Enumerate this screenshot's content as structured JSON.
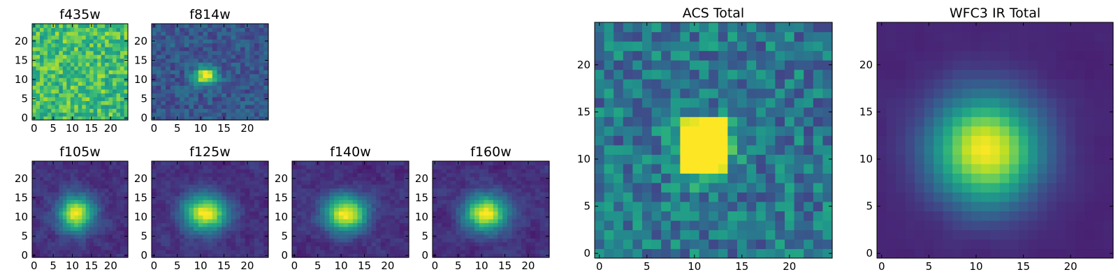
{
  "chart_data": [
    {
      "id": "f435w",
      "type": "heatmap",
      "title": "f435w",
      "grid": 25,
      "xticks": [
        0,
        5,
        10,
        15,
        20
      ],
      "yticks": [
        0,
        5,
        10,
        15,
        20
      ],
      "colormap": "viridis",
      "profile": "noise"
    },
    {
      "id": "f814w",
      "type": "heatmap",
      "title": "f814w",
      "grid": 25,
      "xticks": [
        0,
        5,
        10,
        15,
        20
      ],
      "yticks": [
        0,
        5,
        10,
        15,
        20
      ],
      "colormap": "viridis",
      "profile": "compact",
      "peak": [
        11,
        11
      ]
    },
    {
      "id": "f105w",
      "type": "heatmap",
      "title": "f105w",
      "grid": 25,
      "xticks": [
        0,
        5,
        10,
        15,
        20
      ],
      "yticks": [
        0,
        5,
        10,
        15,
        20
      ],
      "colormap": "viridis",
      "profile": "source",
      "peak": [
        11,
        11
      ]
    },
    {
      "id": "f125w",
      "type": "heatmap",
      "title": "f125w",
      "grid": 25,
      "xticks": [
        0,
        5,
        10,
        15,
        20
      ],
      "yticks": [
        0,
        5,
        10,
        15,
        20
      ],
      "colormap": "viridis",
      "profile": "source",
      "peak": [
        11,
        11
      ]
    },
    {
      "id": "f140w",
      "type": "heatmap",
      "title": "f140w",
      "grid": 25,
      "xticks": [
        0,
        5,
        10,
        15,
        20
      ],
      "yticks": [
        0,
        5,
        10,
        15,
        20
      ],
      "colormap": "viridis",
      "profile": "source",
      "peak": [
        11,
        11
      ]
    },
    {
      "id": "f160w",
      "type": "heatmap",
      "title": "f160w",
      "grid": 25,
      "xticks": [
        0,
        5,
        10,
        15,
        20
      ],
      "yticks": [
        0,
        5,
        10,
        15,
        20
      ],
      "colormap": "viridis",
      "profile": "source",
      "peak": [
        11,
        11
      ]
    },
    {
      "id": "acs",
      "type": "heatmap",
      "title": "ACS Total",
      "grid": 25,
      "xticks": [
        0,
        5,
        10,
        15,
        20
      ],
      "yticks": [
        0,
        5,
        10,
        15,
        20
      ],
      "colormap": "viridis",
      "profile": "acs",
      "peak": [
        11,
        11
      ]
    },
    {
      "id": "wfc3",
      "type": "heatmap",
      "title": "WFC3 IR Total",
      "grid": 25,
      "xticks": [
        0,
        5,
        10,
        15,
        20
      ],
      "yticks": [
        0,
        5,
        10,
        15,
        20
      ],
      "colormap": "viridis",
      "profile": "smooth",
      "peak": [
        11,
        11
      ]
    }
  ]
}
